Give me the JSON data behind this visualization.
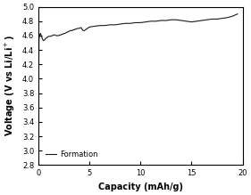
{
  "title": "",
  "xlabel": "Capacity (mAh/g)",
  "ylabel": "Voltage (V vs Li/Li⁺)",
  "xlim": [
    0,
    20
  ],
  "ylim": [
    2.8,
    5.0
  ],
  "xticks": [
    0,
    5,
    10,
    15,
    20
  ],
  "yticks": [
    2.8,
    3.0,
    3.2,
    3.4,
    3.6,
    3.8,
    4.0,
    4.2,
    4.4,
    4.6,
    4.8,
    5.0
  ],
  "legend_label": "Formation",
  "line_color": "#1a1a1a",
  "bg_color": "#ffffff",
  "curve": {
    "x": [
      0.0,
      0.05,
      0.1,
      0.15,
      0.2,
      0.25,
      0.3,
      0.4,
      0.5,
      0.6,
      0.7,
      0.8,
      0.9,
      1.0,
      1.1,
      1.2,
      1.3,
      1.4,
      1.5,
      1.6,
      1.7,
      1.8,
      1.9,
      2.0,
      2.1,
      2.2,
      2.3,
      2.4,
      2.5,
      2.6,
      2.7,
      2.8,
      2.9,
      3.0,
      3.1,
      3.2,
      3.3,
      3.4,
      3.5,
      3.6,
      3.7,
      3.8,
      3.9,
      4.0,
      4.1,
      4.2,
      4.3,
      4.4,
      4.5,
      4.6,
      4.7,
      4.8,
      4.9,
      5.0,
      5.5,
      6.0,
      6.5,
      7.0,
      7.5,
      8.0,
      8.5,
      9.0,
      9.5,
      10.0,
      10.5,
      11.0,
      11.5,
      12.0,
      12.5,
      13.0,
      13.5,
      14.0,
      14.5,
      15.0,
      15.5,
      16.0,
      16.5,
      17.0,
      17.5,
      18.0,
      18.5,
      19.0,
      19.5
    ],
    "y": [
      3.5,
      4.55,
      4.6,
      4.62,
      4.63,
      4.61,
      4.59,
      4.55,
      4.53,
      4.54,
      4.56,
      4.57,
      4.58,
      4.59,
      4.59,
      4.59,
      4.6,
      4.6,
      4.61,
      4.61,
      4.6,
      4.6,
      4.6,
      4.6,
      4.61,
      4.61,
      4.62,
      4.62,
      4.63,
      4.63,
      4.64,
      4.65,
      4.65,
      4.66,
      4.67,
      4.67,
      4.67,
      4.68,
      4.68,
      4.69,
      4.69,
      4.7,
      4.7,
      4.7,
      4.71,
      4.71,
      4.68,
      4.67,
      4.67,
      4.68,
      4.69,
      4.7,
      4.71,
      4.72,
      4.73,
      4.74,
      4.74,
      4.75,
      4.75,
      4.76,
      4.77,
      4.77,
      4.78,
      4.78,
      4.79,
      4.8,
      4.8,
      4.81,
      4.81,
      4.82,
      4.82,
      4.81,
      4.8,
      4.79,
      4.8,
      4.81,
      4.82,
      4.83,
      4.83,
      4.84,
      4.85,
      4.87,
      4.9
    ]
  }
}
